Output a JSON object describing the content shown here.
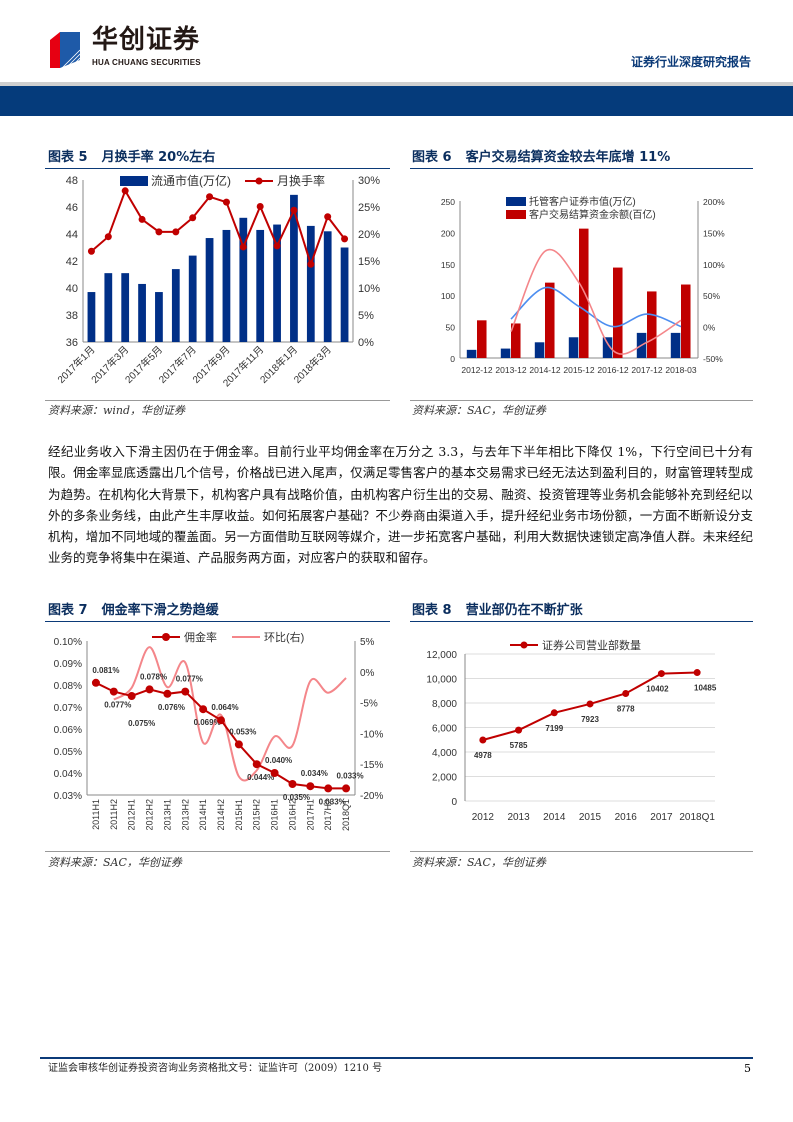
{
  "header": {
    "logo_cn": "华创证券",
    "logo_en": "HUA CHUANG SECURITIES",
    "report_type": "证券行业深度研究报告"
  },
  "colors": {
    "navy": "#053b7b",
    "bar_blue": "#002f87",
    "red": "#c00000",
    "pink": "#f4868a",
    "light_blue": "#4d8ef0"
  },
  "figures": [
    {
      "label": "图表 5",
      "title": "月换手率 20%左右",
      "source": "资料来源：wind，华创证券"
    },
    {
      "label": "图表 6",
      "title": "客户交易结算资金较去年底增 11%",
      "source": "资料来源：SAC，华创证券"
    },
    {
      "label": "图表 7",
      "title": "佣金率下滑之势趋缓",
      "source": "资料来源：SAC，华创证券"
    },
    {
      "label": "图表 8",
      "title": "营业部仍在不断扩张",
      "source": "资料来源：SAC，华创证券"
    }
  ],
  "body_text": "经纪业务收入下滑主因仍在于佣金率。目前行业平均佣金率在万分之 3.3，与去年下半年相比下降仅 1%，下行空间已十分有限。佣金率显底透露出几个信号，价格战已进入尾声，仅满足零售客户的基本交易需求已经无法达到盈利目的，财富管理转型成为趋势。在机构化大背景下，机构客户具有战略价值，由机构客户衍生出的交易、融资、投资管理等业务机会能够补充到经纪以外的多条业务线，由此产生丰厚收益。如何拓展客户基础？不少券商由渠道入手，提升经纪业务市场份额，一方面不断新设分支机构，增加不同地域的覆盖面。另一方面借助互联网等媒介，进一步拓宽客户基础，利用大数据快速锁定高净值人群。未来经纪业务的竞争将集中在渠道、产品服务两方面，对应客户的获取和留存。",
  "footer": {
    "text": "证监会审核华创证券投资咨询业务资格批文号：证监许可（2009）1210 号",
    "page": "5"
  },
  "chart_data": [
    {
      "type": "bar+line",
      "categories": [
        "2017年1月",
        "2017年2月",
        "2017年3月",
        "2017年4月",
        "2017年5月",
        "2017年6月",
        "2017年7月",
        "2017年8月",
        "2017年9月",
        "2017年10月",
        "2017年11月",
        "2017年12月",
        "2018年1月",
        "2018年2月",
        "2018年3月",
        "2018年4月"
      ],
      "shown_tick_labels": [
        "2017年1月",
        "2017年3月",
        "2017年5月",
        "2017年7月",
        "2017年9月",
        "2017年11月",
        "2018年1月",
        "2018年3月"
      ],
      "series": [
        {
          "name": "流通市值(万亿)",
          "type": "bar",
          "axis": "left",
          "values": [
            39.7,
            41.1,
            41.1,
            40.3,
            39.7,
            41.4,
            42.4,
            43.7,
            44.3,
            45.2,
            44.3,
            44.7,
            46.9,
            44.6,
            44.2,
            43.0
          ]
        },
        {
          "name": "月换手率",
          "type": "line",
          "axis": "right",
          "values": [
            16.8,
            19.5,
            28.0,
            22.7,
            20.4,
            20.4,
            23.0,
            26.9,
            25.9,
            17.6,
            25.1,
            17.8,
            24.4,
            14.4,
            23.2,
            19.1
          ]
        }
      ],
      "ylim_left": [
        36,
        48
      ],
      "yticks_left": [
        "36",
        "38",
        "40",
        "42",
        "44",
        "46",
        "48"
      ],
      "ylim_right": [
        0,
        30
      ],
      "yticks_right": [
        "0%",
        "5%",
        "10%",
        "15%",
        "20%",
        "25%",
        "30%"
      ],
      "legend": "top"
    },
    {
      "type": "bar+line",
      "categories": [
        "2012-12",
        "2013-12",
        "2014-12",
        "2015-12",
        "2016-12",
        "2017-12",
        "2018-03"
      ],
      "series": [
        {
          "name": "托管客户证券市值(万亿)",
          "type": "bar",
          "axis": "left",
          "values": [
            13,
            15,
            25,
            33,
            33,
            40,
            40
          ]
        },
        {
          "name": "客户交易结算资金余额(百亿)",
          "type": "bar",
          "axis": "left",
          "values": [
            60,
            55,
            120,
            206,
            144,
            106,
            117
          ]
        },
        {
          "type": "smooth-line",
          "axis": "right",
          "color": "light_blue",
          "values": [
            null,
            12,
            62,
            32,
            0,
            20,
            0
          ]
        },
        {
          "type": "smooth-line",
          "axis": "right",
          "color": "pink",
          "values": [
            null,
            -8,
            120,
            70,
            -38,
            -25,
            10
          ]
        }
      ],
      "ylim_left": [
        0,
        250
      ],
      "yticks_left": [
        "0",
        "50",
        "100",
        "150",
        "200",
        "250"
      ],
      "ylim_right": [
        -50,
        200
      ],
      "yticks_right": [
        "-50%",
        "0%",
        "50%",
        "100%",
        "150%",
        "200%"
      ],
      "legend": "top"
    },
    {
      "type": "line",
      "categories": [
        "2011H1",
        "2011H2",
        "2012H1",
        "2012H2",
        "2013H1",
        "2013H2",
        "2014H1",
        "2014H2",
        "2015H1",
        "2015H2",
        "2016H1",
        "2016H2",
        "2017H1",
        "2017H2",
        "2018Q1"
      ],
      "series": [
        {
          "name": "佣金率",
          "axis": "left",
          "values": [
            0.081,
            0.077,
            0.075,
            0.078,
            0.076,
            0.077,
            0.069,
            0.064,
            0.053,
            0.044,
            0.04,
            0.035,
            0.034,
            0.033,
            0.033
          ],
          "labels": [
            "0.081%",
            "0.077%",
            "0.075%",
            "0.078%",
            "0.076%",
            "0.077%",
            "0.069%",
            "0.064%",
            "0.053%",
            "0.044%",
            "0.040%",
            "0.035%",
            "0.034%",
            "0.033%",
            "0.033%"
          ]
        },
        {
          "name": "环比(右)",
          "axis": "right",
          "smooth": true,
          "values": [
            null,
            -4.5,
            -2.6,
            4.0,
            -2.5,
            1.5,
            -11.5,
            -7.0,
            -17.0,
            -16.0,
            -10.5,
            -12.0,
            -1.5,
            -3.4,
            -1.0
          ]
        }
      ],
      "ylim_left": [
        0.03,
        0.1
      ],
      "yticks_left": [
        "0.03%",
        "0.04%",
        "0.05%",
        "0.06%",
        "0.07%",
        "0.08%",
        "0.09%",
        "0.10%"
      ],
      "ylim_right": [
        -20,
        5
      ],
      "yticks_right": [
        "-20%",
        "-15%",
        "-10%",
        "-5%",
        "0%",
        "5%"
      ],
      "legend": "top"
    },
    {
      "type": "line",
      "categories": [
        "2012",
        "2013",
        "2014",
        "2015",
        "2016",
        "2017",
        "2018Q1"
      ],
      "series": [
        {
          "name": "证券公司营业部数量",
          "values": [
            4978,
            5785,
            7199,
            7923,
            8778,
            10402,
            10485
          ],
          "labels": [
            "4978",
            "5785",
            "7199",
            "7923",
            "8778",
            "10402",
            "10485"
          ]
        }
      ],
      "ylim": [
        0,
        12000
      ],
      "yticks": [
        "0",
        "2,000",
        "4,000",
        "6,000",
        "8,000",
        "10,000",
        "12,000"
      ],
      "grid": true,
      "legend": "top"
    }
  ]
}
